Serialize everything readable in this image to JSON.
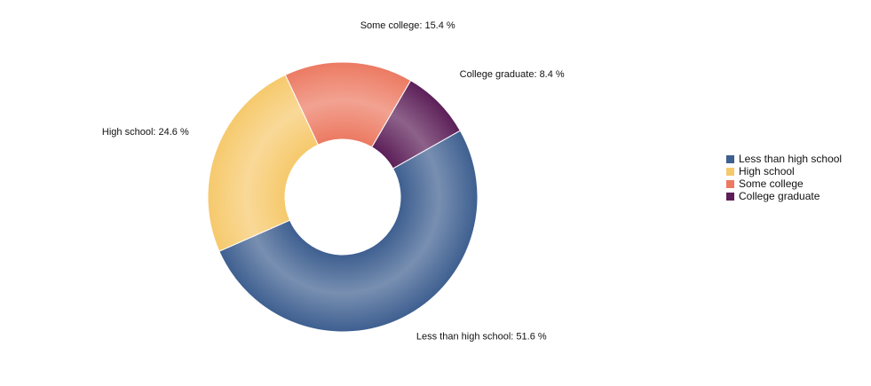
{
  "chart_data": {
    "type": "donut",
    "categories": [
      "Less than high school",
      "High school",
      "Some college",
      "College graduate"
    ],
    "values": [
      51.6,
      24.6,
      15.4,
      8.4
    ],
    "value_labels": [
      "Less than high school: 51.6 %",
      "High school: 24.6 %",
      "Some college: 15.4 %",
      "College graduate: 8.4 %"
    ],
    "colors": [
      "#3e5f90",
      "#f6c96c",
      "#ec7a62",
      "#5c1f58"
    ],
    "legend": "right"
  }
}
